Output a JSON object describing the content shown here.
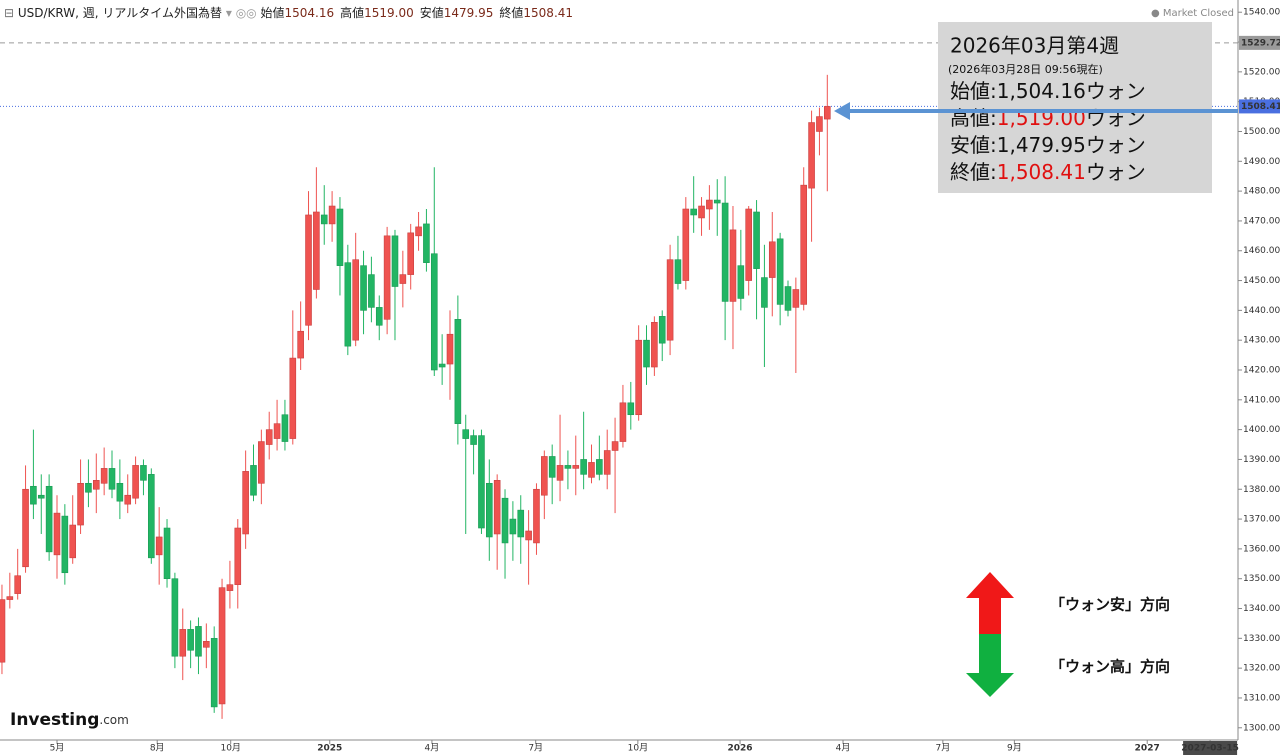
{
  "header": {
    "symbol": "USD/KRW, 週, リアルタイム外国為替",
    "ohlc": [
      {
        "label": "始値",
        "value": "1504.16"
      },
      {
        "label": "高値",
        "value": "1519.00"
      },
      {
        "label": "安値",
        "value": "1479.95"
      },
      {
        "label": "終値",
        "value": "1508.41"
      }
    ],
    "status": "Market Closed"
  },
  "logo": {
    "brand": "Investing",
    "suffix": ".com"
  },
  "chart_data": {
    "type": "candlestick",
    "up_color": "#ef5350",
    "down_color": "#22b564",
    "open": [
      1322,
      1343,
      1345,
      1354,
      1381,
      1378,
      1381,
      1358,
      1371,
      1357,
      1368,
      1382,
      1380,
      1382,
      1387,
      1382,
      1375,
      1377,
      1388,
      1385,
      1358,
      1367,
      1350,
      1324,
      1333,
      1334,
      1327,
      1330,
      1308,
      1346,
      1348,
      1365,
      1388,
      1382,
      1395,
      1397,
      1405,
      1397,
      1424,
      1435,
      1447,
      1472,
      1469,
      1474,
      1456,
      1430,
      1455,
      1452,
      1441,
      1437,
      1465,
      1449,
      1452,
      1465,
      1469,
      1459,
      1422,
      1422,
      1437,
      1400,
      1398,
      1398,
      1382,
      1365,
      1377,
      1370,
      1373,
      1363,
      1362,
      1378,
      1391,
      1383,
      1388,
      1387,
      1390,
      1384,
      1390,
      1385,
      1393,
      1396,
      1409,
      1405,
      1430,
      1421,
      1438,
      1430,
      1457,
      1450,
      1474,
      1471,
      1474,
      1477,
      1476,
      1443,
      1455,
      1450,
      1473,
      1451,
      1451,
      1464,
      1448,
      1441,
      1442,
      1481,
      1500,
      1504.16
    ],
    "high": [
      1348,
      1352,
      1360,
      1388,
      1400,
      1385,
      1385,
      1378,
      1375,
      1378,
      1390,
      1390,
      1392,
      1394,
      1393,
      1390,
      1385,
      1391,
      1390,
      1387,
      1374,
      1370,
      1352,
      1340,
      1336,
      1337,
      1335,
      1334,
      1350,
      1356,
      1370,
      1393,
      1395,
      1400,
      1406,
      1410,
      1410,
      1440,
      1443,
      1480,
      1488,
      1482,
      1480,
      1478,
      1462,
      1466,
      1460,
      1458,
      1445,
      1468,
      1467,
      1460,
      1469,
      1473,
      1474,
      1488,
      1432,
      1440,
      1445,
      1405,
      1400,
      1400,
      1390,
      1385,
      1380,
      1376,
      1378,
      1373,
      1382,
      1393,
      1395,
      1405,
      1393,
      1398,
      1406,
      1395,
      1398,
      1400,
      1404,
      1415,
      1416,
      1435,
      1435,
      1438,
      1440,
      1462,
      1465,
      1478,
      1485,
      1478,
      1482,
      1484,
      1485,
      1475,
      1467,
      1475,
      1477,
      1462,
      1473,
      1466,
      1450,
      1451,
      1488,
      1507,
      1508,
      1519.0
    ],
    "low": [
      1318,
      1340,
      1343,
      1352,
      1370,
      1365,
      1356,
      1350,
      1348,
      1355,
      1365,
      1374,
      1372,
      1378,
      1377,
      1370,
      1372,
      1375,
      1378,
      1355,
      1348,
      1347,
      1320,
      1316,
      1320,
      1318,
      1320,
      1305,
      1303,
      1340,
      1340,
      1360,
      1376,
      1375,
      1390,
      1393,
      1393,
      1395,
      1420,
      1430,
      1444,
      1462,
      1463,
      1445,
      1425,
      1428,
      1432,
      1436,
      1430,
      1432,
      1430,
      1441,
      1447,
      1460,
      1453,
      1418,
      1415,
      1410,
      1395,
      1365,
      1385,
      1365,
      1356,
      1353,
      1350,
      1356,
      1355,
      1348,
      1358,
      1370,
      1375,
      1376,
      1380,
      1378,
      1380,
      1382,
      1383,
      1380,
      1372,
      1394,
      1400,
      1403,
      1415,
      1418,
      1423,
      1425,
      1447,
      1447,
      1466,
      1465,
      1467,
      1465,
      1430,
      1427,
      1440,
      1445,
      1437,
      1421,
      1438,
      1435,
      1438,
      1419,
      1440,
      1463,
      1492,
      1479.95
    ],
    "close": [
      1343,
      1344,
      1351,
      1380,
      1375,
      1377,
      1359,
      1372,
      1352,
      1368,
      1382,
      1379,
      1383,
      1387,
      1380,
      1376,
      1378,
      1388,
      1383,
      1357,
      1364,
      1350,
      1324,
      1333,
      1326,
      1324,
      1329,
      1307,
      1347,
      1348,
      1367,
      1386,
      1378,
      1396,
      1400,
      1402,
      1396,
      1424,
      1433,
      1472,
      1473,
      1469,
      1475,
      1455,
      1428,
      1457,
      1440,
      1441,
      1435,
      1465,
      1448,
      1452,
      1466,
      1468,
      1456,
      1420,
      1421,
      1432,
      1402,
      1397,
      1395,
      1367,
      1364,
      1383,
      1362,
      1365,
      1364,
      1366,
      1380,
      1391,
      1384,
      1388,
      1387,
      1388,
      1385,
      1389,
      1385,
      1393,
      1396,
      1409,
      1405,
      1430,
      1421,
      1436,
      1429,
      1457,
      1449,
      1474,
      1472,
      1475,
      1477,
      1476,
      1443,
      1467,
      1444,
      1474,
      1454,
      1441,
      1463,
      1442,
      1440,
      1447,
      1482,
      1503,
      1505,
      1508.41
    ],
    "xlim": [
      -0.25,
      157.25
    ],
    "xticks": [
      {
        "value": 7,
        "label": "5月"
      },
      {
        "value": 19.75,
        "label": "8月"
      },
      {
        "value": 29.1,
        "label": "10月"
      },
      {
        "value": 41.7,
        "label": "2025"
      },
      {
        "value": 54.7,
        "label": "4月"
      },
      {
        "value": 67.9,
        "label": "7月"
      },
      {
        "value": 80.9,
        "label": "10月"
      },
      {
        "value": 93.9,
        "label": "2026"
      },
      {
        "value": 107,
        "label": "4月"
      },
      {
        "value": 119.7,
        "label": "7月"
      },
      {
        "value": 128.8,
        "label": "9月"
      },
      {
        "value": 145.7,
        "label": "2027"
      },
      {
        "value": 153.7,
        "label": "2027-03-15"
      }
    ],
    "ylim": [
      1295.9,
      1544.1
    ],
    "yticks": [
      {
        "value": 1300,
        "label": "1300.00"
      },
      {
        "value": 1310,
        "label": "1310.00"
      },
      {
        "value": 1320,
        "label": "1320.00"
      },
      {
        "value": 1330,
        "label": "1330.00"
      },
      {
        "value": 1340,
        "label": "1340.00"
      },
      {
        "value": 1350,
        "label": "1350.00"
      },
      {
        "value": 1360,
        "label": "1360.00"
      },
      {
        "value": 1370,
        "label": "1370.00"
      },
      {
        "value": 1380,
        "label": "1380.00"
      },
      {
        "value": 1390,
        "label": "1390.00"
      },
      {
        "value": 1400,
        "label": "1400.00"
      },
      {
        "value": 1410,
        "label": "1410.00"
      },
      {
        "value": 1420,
        "label": "1420.00"
      },
      {
        "value": 1430,
        "label": "1430.00"
      },
      {
        "value": 1440,
        "label": "1440.00"
      },
      {
        "value": 1450,
        "label": "1450.00"
      },
      {
        "value": 1460,
        "label": "1460.00"
      },
      {
        "value": 1470,
        "label": "1470.00"
      },
      {
        "value": 1480,
        "label": "1480.00"
      },
      {
        "value": 1490,
        "label": "1490.00"
      },
      {
        "value": 1500,
        "label": "1500.00"
      },
      {
        "value": 1510,
        "label": "1510.00"
      },
      {
        "value": 1520,
        "label": "1520.00"
      },
      {
        "value": 1530,
        "label": "1530.00"
      },
      {
        "value": 1540,
        "label": "1540.00"
      }
    ],
    "price_lines": [
      {
        "value": 1529.72,
        "color": "#9a9a9a"
      },
      {
        "value": 1508.41,
        "color": "#4a6fe0"
      }
    ],
    "annotation": {
      "title": "2026年03月第4週",
      "subtitle": "(2026年03月28日 09:56現在)",
      "lines": [
        {
          "label": "始値:",
          "value": "1,504.16",
          "unit": "ウォン",
          "value_color": "#111111"
        },
        {
          "label": "高値:",
          "value": "1,519.00",
          "unit": "ウォン",
          "value_color": "#e01010"
        },
        {
          "label": "安値:",
          "value": "1,479.95",
          "unit": "ウォン",
          "value_color": "#111111"
        },
        {
          "label": "終値:",
          "value": "1,508.41",
          "unit": "ウォン",
          "value_color": "#e01010"
        }
      ]
    },
    "direction_labels": {
      "up": "「ウォン安」方向",
      "down": "「ウォン高」方向"
    }
  }
}
